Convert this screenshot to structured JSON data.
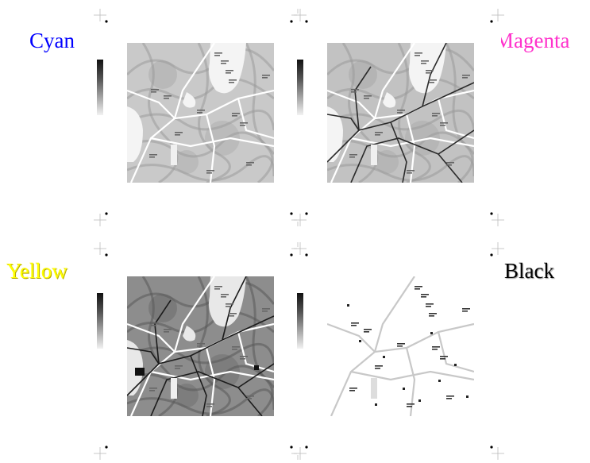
{
  "plates": [
    {
      "id": "cyan",
      "label": "Cyan",
      "color": "#0000ff",
      "icon": "map-plate-icon"
    },
    {
      "id": "magenta",
      "label": "Magenta",
      "color": "#ff33cc",
      "icon": "map-plate-icon"
    },
    {
      "id": "yellow",
      "label": "Yellow",
      "color": "#ffff00",
      "icon": "map-plate-icon"
    },
    {
      "id": "black",
      "label": "Black",
      "color": "#000000",
      "icon": "map-plate-icon"
    }
  ],
  "icons": {
    "registration_mark": "crosshair-registration-icon",
    "gray_ramp": "grayscale-ramp-icon"
  }
}
